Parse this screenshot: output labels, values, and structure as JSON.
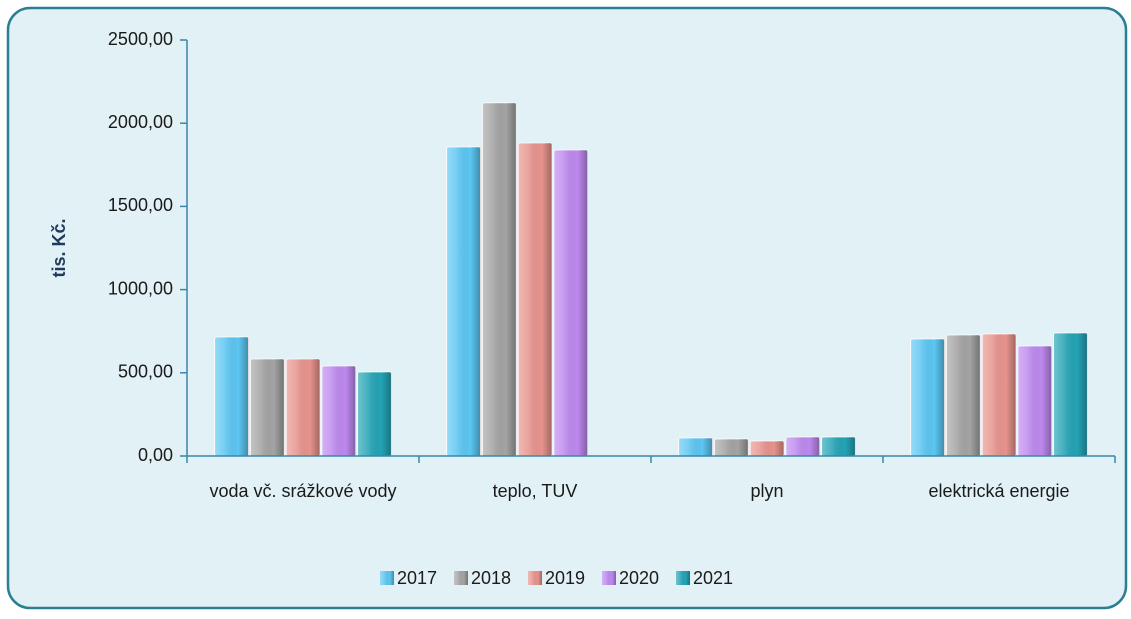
{
  "chart_data": {
    "type": "bar",
    "ylabel": "tis. Kč.",
    "categories": [
      "voda vč. srážkové vody",
      "teplo, TUV",
      "plyn",
      "elektrická energie"
    ],
    "series": [
      {
        "name": "2017",
        "color": "#5cc6f2",
        "values": [
          715,
          1857,
          108,
          703
        ]
      },
      {
        "name": "2018",
        "color": "#a3a3a3",
        "values": [
          583,
          2122,
          102,
          727
        ]
      },
      {
        "name": "2019",
        "color": "#e8938d",
        "values": [
          583,
          1881,
          90,
          733
        ]
      },
      {
        "name": "2020",
        "color": "#bd88ee",
        "values": [
          541,
          1839,
          114,
          661
        ]
      },
      {
        "name": "2021",
        "color": "#23a3b5",
        "values": [
          505,
          null,
          114,
          739
        ]
      }
    ],
    "ylim": [
      0,
      2500
    ],
    "yticks": [
      {
        "value": 0,
        "label": "0,00"
      },
      {
        "value": 500,
        "label": "500,00"
      },
      {
        "value": 1000,
        "label": "1000,00"
      },
      {
        "value": 1500,
        "label": "1500,00"
      },
      {
        "value": 2000,
        "label": "2000,00"
      },
      {
        "value": 2500,
        "label": "2500,00"
      }
    ],
    "legend": "bottom"
  }
}
